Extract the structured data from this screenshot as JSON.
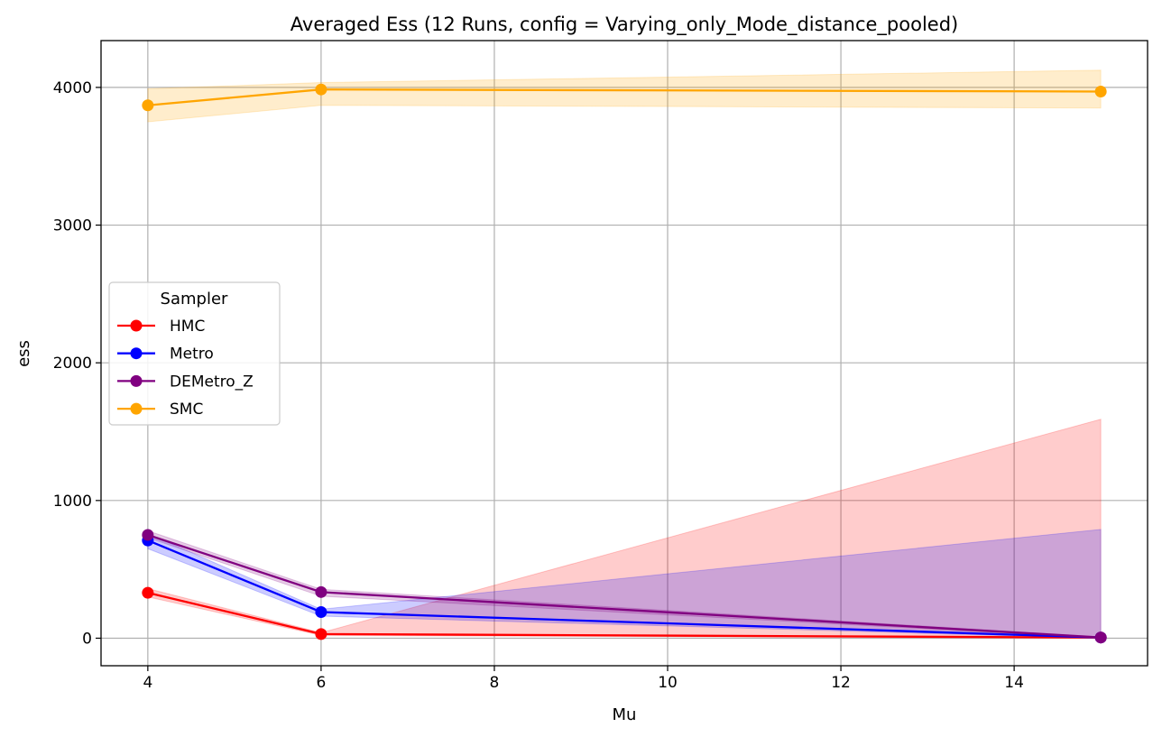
{
  "chart_data": {
    "type": "line",
    "title": "Averaged Ess (12 Runs, config = Varying_only_Mode_distance_pooled)",
    "xlabel": "Mu",
    "ylabel": "ess",
    "xlim": [
      3.46,
      15.54
    ],
    "ylim": [
      -200,
      4340
    ],
    "xticks": [
      4,
      6,
      8,
      10,
      12,
      14
    ],
    "yticks": [
      0,
      1000,
      2000,
      3000,
      4000
    ],
    "grid": true,
    "legend": {
      "title": "Sampler",
      "placement": "center-left"
    },
    "x": [
      4,
      6,
      15
    ],
    "series": [
      {
        "name": "HMC",
        "color": "#ff0000",
        "values": [
          330,
          30,
          5
        ],
        "lower": [
          300,
          20,
          0
        ],
        "upper": [
          360,
          40,
          1590
        ]
      },
      {
        "name": "Metro",
        "color": "#0000ff",
        "values": [
          710,
          190,
          5
        ],
        "lower": [
          650,
          160,
          0
        ],
        "upper": [
          760,
          210,
          790
        ]
      },
      {
        "name": "DEMetro_Z",
        "color": "#800080",
        "values": [
          750,
          335,
          5
        ],
        "lower": [
          730,
          305,
          0
        ],
        "upper": [
          780,
          355,
          10
        ]
      },
      {
        "name": "SMC",
        "color": "#ffa500",
        "values": [
          3870,
          3985,
          3970
        ],
        "lower": [
          3750,
          3870,
          3850
        ],
        "upper": [
          3990,
          4035,
          4125
        ]
      }
    ]
  }
}
